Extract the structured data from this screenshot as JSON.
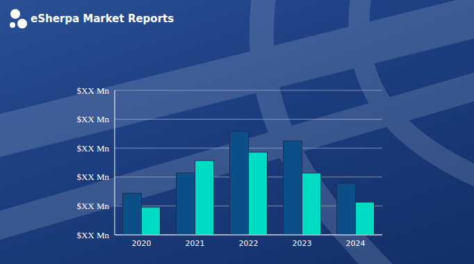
{
  "chart_data": {
    "type": "bar",
    "title": "eSherpa Market Reports",
    "categories": [
      "2020",
      "2021",
      "2022",
      "2023",
      "2024"
    ],
    "series": [
      {
        "color": "#0b4f86",
        "values": [
          28.8,
          42.8,
          71.6,
          64.9,
          35.6
        ]
      },
      {
        "color": "#00dcc4",
        "values": [
          19.2,
          51.4,
          57.2,
          42.8,
          22.6
        ]
      }
    ],
    "ylim": [
      0,
      100
    ],
    "yticks": [
      {
        "value": 0,
        "label": "$XX Mn"
      },
      {
        "value": 20,
        "label": "$XX Mn"
      },
      {
        "value": 40,
        "label": "$XX Mn"
      },
      {
        "value": 60,
        "label": "$XX Mn"
      },
      {
        "value": 80,
        "label": "$XX Mn"
      },
      {
        "value": 100,
        "label": "$XX Mn"
      }
    ],
    "grid": true
  }
}
